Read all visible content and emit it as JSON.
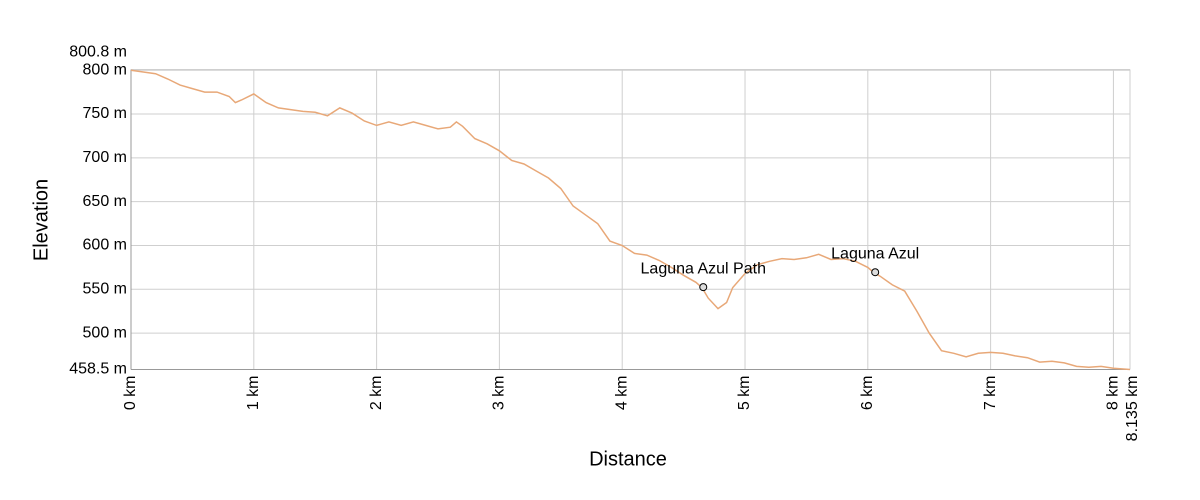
{
  "chart_data": {
    "type": "line",
    "x_label": "Distance",
    "y_label": "Elevation",
    "xlim": [
      0,
      8.135
    ],
    "ylim": [
      458.5,
      800.8
    ],
    "xticks": [
      {
        "value": 0,
        "label": "0 km"
      },
      {
        "value": 1,
        "label": "1 km"
      },
      {
        "value": 2,
        "label": "2 km"
      },
      {
        "value": 3,
        "label": "3 km"
      },
      {
        "value": 4,
        "label": "4 km"
      },
      {
        "value": 5,
        "label": "5 km"
      },
      {
        "value": 6,
        "label": "6 km"
      },
      {
        "value": 7,
        "label": "7 km"
      },
      {
        "value": 8,
        "label": "8 km"
      },
      {
        "value": 8.135,
        "label": "8.135 km"
      }
    ],
    "yticks": [
      {
        "value": 458.5,
        "label": "458.5 m"
      },
      {
        "value": 500,
        "label": "500 m"
      },
      {
        "value": 550,
        "label": "550 m"
      },
      {
        "value": 600,
        "label": "600 m"
      },
      {
        "value": 650,
        "label": "650 m"
      },
      {
        "value": 700,
        "label": "700 m"
      },
      {
        "value": 750,
        "label": "750 m"
      },
      {
        "value": 800,
        "label": "800 m"
      },
      {
        "value": 800.8,
        "label": "800.8 m"
      }
    ],
    "grid": true,
    "series": [
      {
        "color": "#e8a878",
        "x": [
          0,
          0.1,
          0.2,
          0.3,
          0.4,
          0.5,
          0.6,
          0.7,
          0.8,
          0.85,
          0.9,
          1.0,
          1.1,
          1.2,
          1.3,
          1.4,
          1.5,
          1.6,
          1.7,
          1.8,
          1.9,
          2.0,
          2.1,
          2.2,
          2.3,
          2.4,
          2.5,
          2.6,
          2.65,
          2.7,
          2.8,
          2.9,
          3.0,
          3.1,
          3.2,
          3.3,
          3.4,
          3.5,
          3.6,
          3.7,
          3.8,
          3.9,
          4.0,
          4.1,
          4.2,
          4.3,
          4.4,
          4.5,
          4.6,
          4.65,
          4.7,
          4.78,
          4.85,
          4.9,
          5.0,
          5.1,
          5.2,
          5.3,
          5.4,
          5.5,
          5.6,
          5.7,
          5.8,
          5.9,
          6.0,
          6.05,
          6.1,
          6.2,
          6.3,
          6.4,
          6.5,
          6.6,
          6.7,
          6.8,
          6.9,
          7.0,
          7.1,
          7.2,
          7.3,
          7.4,
          7.5,
          7.6,
          7.7,
          7.8,
          7.9,
          8.0,
          8.135
        ],
        "values": [
          800,
          798,
          796,
          790,
          783,
          779,
          775,
          775,
          770,
          763,
          766,
          773,
          763,
          757,
          755,
          753,
          752,
          748,
          757,
          751,
          742,
          737,
          741,
          737,
          741,
          737,
          733,
          735,
          741,
          736,
          722,
          716,
          708,
          697,
          693,
          685,
          677,
          665,
          645,
          635,
          625,
          605,
          600,
          591,
          589,
          583,
          575,
          566,
          558,
          552,
          540,
          528,
          535,
          552,
          568,
          578,
          582,
          585,
          584,
          586,
          590,
          584,
          585,
          582,
          575,
          569,
          565,
          555,
          548,
          525,
          500,
          480,
          477,
          473,
          477,
          478,
          477,
          474,
          472,
          467,
          468,
          466,
          462,
          461,
          462,
          460,
          458.5
        ]
      }
    ],
    "annotations": [
      {
        "label": "Laguna Azul Path",
        "x": 4.66,
        "y": 552.5
      },
      {
        "label": "Laguna Azul",
        "x": 6.06,
        "y": 569.5
      }
    ]
  }
}
